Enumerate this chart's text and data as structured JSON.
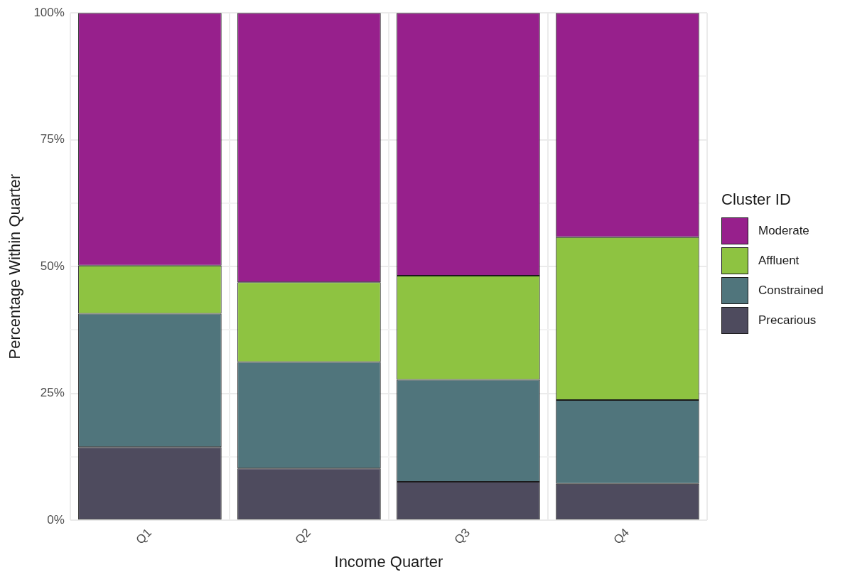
{
  "chart_data": {
    "type": "bar",
    "stacked": true,
    "xlabel": "Income Quarter",
    "ylabel": "Percentage Within Quarter",
    "legend_title": "Cluster ID",
    "legend": "right",
    "grid": true,
    "categories": [
      "Q1",
      "Q2",
      "Q3",
      "Q4"
    ],
    "series": [
      {
        "name": "Precarious",
        "color": "#4e4b5e",
        "values": [
          14.4,
          10.2,
          7.6,
          7.2
        ]
      },
      {
        "name": "Constrained",
        "color": "#50757c",
        "values": [
          26.3,
          21.0,
          20.1,
          16.5
        ]
      },
      {
        "name": "Affluent",
        "color": "#8ec341",
        "values": [
          9.5,
          15.7,
          20.5,
          32.1
        ]
      },
      {
        "name": "Moderate",
        "color": "#97208c",
        "values": [
          49.8,
          53.1,
          51.8,
          44.2
        ]
      }
    ],
    "ylim": [
      0,
      100
    ],
    "yticks": [
      {
        "value": 0,
        "label": "0%"
      },
      {
        "value": 12.5,
        "label": null
      },
      {
        "value": 25,
        "label": "25%"
      },
      {
        "value": 37.5,
        "label": null
      },
      {
        "value": 50,
        "label": "50%"
      },
      {
        "value": 62.5,
        "label": null
      },
      {
        "value": 75,
        "label": "75%"
      },
      {
        "value": 87.5,
        "label": null
      },
      {
        "value": 100,
        "label": "100%"
      }
    ]
  }
}
